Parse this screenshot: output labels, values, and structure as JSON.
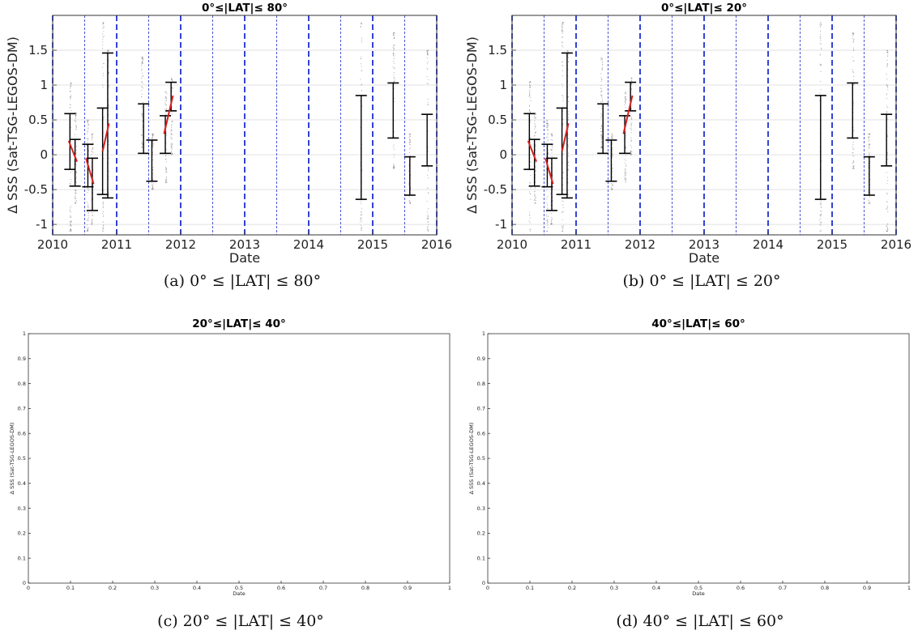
{
  "chart_data": [
    {
      "panel": "a",
      "type": "scatter",
      "title": "0°≤|LAT|≤ 80°",
      "caption": "(a) 0° ≤ |LAT| ≤ 80°",
      "xlabel": "Date",
      "ylabel": "Δ SSS (Sat-TSG-LEGOS-DM)",
      "xlim": [
        2010,
        2016
      ],
      "ylim": [
        -1.15,
        2.0
      ],
      "xticks": [
        2010,
        2011,
        2012,
        2013,
        2014,
        2015,
        2016
      ],
      "yticks": [
        -1,
        -0.5,
        0,
        0.5,
        1,
        1.5
      ],
      "grid": true,
      "year_dividers": [
        2010,
        2011,
        2012,
        2013,
        2014,
        2015,
        2016
      ],
      "half_year_dividers": [
        2010.5,
        2011.5,
        2012.5,
        2013.5,
        2014.5,
        2015.5
      ],
      "error_bars": [
        {
          "x": 2010.27,
          "low": -0.21,
          "high": 0.59
        },
        {
          "x": 2010.35,
          "low": -0.45,
          "high": 0.22
        },
        {
          "x": 2010.55,
          "low": -0.46,
          "high": 0.15
        },
        {
          "x": 2010.62,
          "low": -0.8,
          "high": -0.05
        },
        {
          "x": 2010.78,
          "low": -0.57,
          "high": 0.67
        },
        {
          "x": 2010.86,
          "low": -0.62,
          "high": 1.46
        },
        {
          "x": 2011.42,
          "low": 0.02,
          "high": 0.73
        },
        {
          "x": 2011.55,
          "low": -0.38,
          "high": 0.21
        },
        {
          "x": 2011.76,
          "low": 0.02,
          "high": 0.56
        },
        {
          "x": 2011.85,
          "low": 0.63,
          "high": 1.04
        },
        {
          "x": 2014.82,
          "low": -0.64,
          "high": 0.85
        },
        {
          "x": 2015.32,
          "low": 0.24,
          "high": 1.03
        },
        {
          "x": 2015.58,
          "low": -0.58,
          "high": -0.03
        },
        {
          "x": 2015.85,
          "low": -0.16,
          "high": 0.58
        }
      ],
      "mean_segments": [
        {
          "x": [
            2010.25,
            2010.38
          ],
          "y": [
            0.2,
            -0.1
          ]
        },
        {
          "x": [
            2010.52,
            2010.64
          ],
          "y": [
            -0.05,
            -0.42
          ]
        },
        {
          "x": [
            2010.78,
            2010.88
          ],
          "y": [
            0.05,
            0.45
          ]
        },
        {
          "x": [
            2011.74,
            2011.88
          ],
          "y": [
            0.3,
            0.85
          ]
        }
      ],
      "scatter_clusters": [
        {
          "x": 2010.28,
          "low": -1.1,
          "high": 1.05
        },
        {
          "x": 2010.36,
          "low": -0.7,
          "high": 0.6
        },
        {
          "x": 2010.55,
          "low": -1.1,
          "high": 0.5
        },
        {
          "x": 2010.62,
          "low": -1.0,
          "high": 0.3
        },
        {
          "x": 2010.79,
          "low": -1.1,
          "high": 1.9
        },
        {
          "x": 2010.87,
          "low": -0.6,
          "high": 1.5
        },
        {
          "x": 2011.4,
          "low": 0.1,
          "high": 1.4
        },
        {
          "x": 2011.56,
          "low": -0.5,
          "high": 0.3
        },
        {
          "x": 2011.77,
          "low": -0.4,
          "high": 0.9
        },
        {
          "x": 2011.86,
          "low": 0.0,
          "high": 1.1
        },
        {
          "x": 2014.82,
          "low": -1.1,
          "high": 1.9
        },
        {
          "x": 2015.33,
          "low": -0.2,
          "high": 1.75
        },
        {
          "x": 2015.58,
          "low": -0.7,
          "high": 0.3
        },
        {
          "x": 2015.86,
          "low": -1.1,
          "high": 1.5
        }
      ],
      "colors": {
        "mean": "#d62020",
        "bars": "#000000",
        "dividers": "#1f2fd0",
        "points": "#888888"
      }
    },
    {
      "panel": "b",
      "type": "scatter",
      "title": "0°≤|LAT|≤ 20°",
      "caption": "(b) 0° ≤ |LAT| ≤ 20°",
      "xlabel": "Date",
      "ylabel": "Δ SSS (Sat-TSG-LEGOS-DM)",
      "xlim": [
        2010,
        2016
      ],
      "ylim": [
        -1.15,
        2.0
      ],
      "xticks": [
        2010,
        2011,
        2012,
        2013,
        2014,
        2015,
        2016
      ],
      "yticks": [
        -1,
        -0.5,
        0,
        0.5,
        1,
        1.5
      ],
      "grid": true,
      "year_dividers": [
        2010,
        2011,
        2012,
        2013,
        2014,
        2015,
        2016
      ],
      "half_year_dividers": [
        2010.5,
        2011.5,
        2012.5,
        2013.5,
        2014.5,
        2015.5
      ],
      "error_bars": [
        {
          "x": 2010.27,
          "low": -0.21,
          "high": 0.59
        },
        {
          "x": 2010.35,
          "low": -0.45,
          "high": 0.22
        },
        {
          "x": 2010.55,
          "low": -0.46,
          "high": 0.15
        },
        {
          "x": 2010.62,
          "low": -0.8,
          "high": -0.05
        },
        {
          "x": 2010.78,
          "low": -0.57,
          "high": 0.67
        },
        {
          "x": 2010.86,
          "low": -0.62,
          "high": 1.46
        },
        {
          "x": 2011.42,
          "low": 0.02,
          "high": 0.73
        },
        {
          "x": 2011.55,
          "low": -0.38,
          "high": 0.21
        },
        {
          "x": 2011.76,
          "low": 0.02,
          "high": 0.56
        },
        {
          "x": 2011.85,
          "low": 0.63,
          "high": 1.04
        },
        {
          "x": 2014.82,
          "low": -0.64,
          "high": 0.85
        },
        {
          "x": 2015.32,
          "low": 0.24,
          "high": 1.03
        },
        {
          "x": 2015.58,
          "low": -0.58,
          "high": -0.03
        },
        {
          "x": 2015.85,
          "low": -0.16,
          "high": 0.58
        }
      ],
      "mean_segments": [
        {
          "x": [
            2010.25,
            2010.38
          ],
          "y": [
            0.2,
            -0.1
          ]
        },
        {
          "x": [
            2010.52,
            2010.64
          ],
          "y": [
            -0.05,
            -0.42
          ]
        },
        {
          "x": [
            2010.78,
            2010.88
          ],
          "y": [
            0.05,
            0.45
          ]
        },
        {
          "x": [
            2011.74,
            2011.88
          ],
          "y": [
            0.3,
            0.85
          ]
        }
      ],
      "scatter_clusters": [
        {
          "x": 2010.28,
          "low": -1.1,
          "high": 1.05
        },
        {
          "x": 2010.36,
          "low": -0.7,
          "high": 0.6
        },
        {
          "x": 2010.55,
          "low": -1.1,
          "high": 0.5
        },
        {
          "x": 2010.62,
          "low": -1.0,
          "high": 0.3
        },
        {
          "x": 2010.79,
          "low": -1.1,
          "high": 1.9
        },
        {
          "x": 2010.87,
          "low": -0.6,
          "high": 1.5
        },
        {
          "x": 2011.4,
          "low": 0.1,
          "high": 1.4
        },
        {
          "x": 2011.56,
          "low": -0.5,
          "high": 0.3
        },
        {
          "x": 2011.77,
          "low": -0.4,
          "high": 0.9
        },
        {
          "x": 2011.86,
          "low": 0.0,
          "high": 1.1
        },
        {
          "x": 2014.82,
          "low": -1.1,
          "high": 1.9
        },
        {
          "x": 2015.33,
          "low": -0.2,
          "high": 1.75
        },
        {
          "x": 2015.58,
          "low": -0.7,
          "high": 0.3
        },
        {
          "x": 2015.86,
          "low": -1.1,
          "high": 1.5
        }
      ],
      "colors": {
        "mean": "#d62020",
        "bars": "#000000",
        "dividers": "#1f2fd0",
        "points": "#888888"
      }
    },
    {
      "panel": "c",
      "type": "scatter",
      "title": "20°≤|LAT|≤ 40°",
      "caption": "(c) 20° ≤ |LAT| ≤ 40°",
      "xlabel": "Date",
      "ylabel": "Δ SSS (Sat-TSG-LEGOS-DM)",
      "xlim": [
        0,
        1
      ],
      "ylim": [
        0,
        1
      ],
      "xticks": [
        0,
        0.1,
        0.2,
        0.3,
        0.4,
        0.5,
        0.6,
        0.7,
        0.8,
        0.9,
        1
      ],
      "yticks": [
        0,
        0.1,
        0.2,
        0.3,
        0.4,
        0.5,
        0.6,
        0.7,
        0.8,
        0.9,
        1
      ],
      "empty": true
    },
    {
      "panel": "d",
      "type": "scatter",
      "title": "40°≤|LAT|≤ 60°",
      "caption": "(d) 40° ≤ |LAT| ≤ 60°",
      "xlabel": "Date",
      "ylabel": "Δ SSS (Sat-TSG-LEGOS-DM)",
      "xlim": [
        0,
        1
      ],
      "ylim": [
        0,
        1
      ],
      "xticks": [
        0,
        0.1,
        0.2,
        0.3,
        0.4,
        0.5,
        0.6,
        0.7,
        0.8,
        0.9,
        1
      ],
      "yticks": [
        0,
        0.1,
        0.2,
        0.3,
        0.4,
        0.5,
        0.6,
        0.7,
        0.8,
        0.9,
        1
      ],
      "empty": true
    }
  ]
}
